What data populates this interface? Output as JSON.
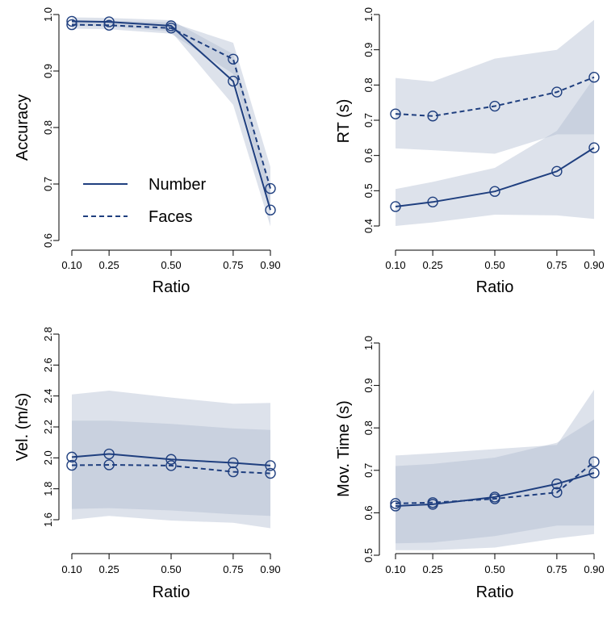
{
  "chart_data": [
    {
      "type": "line",
      "panel": "top-left",
      "xlabel": "Ratio",
      "ylabel": "Accuracy",
      "x": [
        0.1,
        0.25,
        0.5,
        0.75,
        0.9
      ],
      "x_ticks": [
        "0.10",
        "0.25",
        "0.50",
        "0.75",
        "0.90"
      ],
      "ylim": [
        0.6,
        1.0
      ],
      "y_ticks": [
        "0.6",
        "0.7",
        "0.8",
        "0.9",
        "1.0"
      ],
      "legend": {
        "placement": "left",
        "entries": [
          "Number",
          "Faces"
        ]
      },
      "series": [
        {
          "name": "Number",
          "style": "solid",
          "values": [
            0.988,
            0.987,
            0.98,
            0.882,
            0.654
          ],
          "band_lower": [
            0.98,
            0.979,
            0.97,
            0.84,
            0.625
          ],
          "band_upper": [
            0.995,
            0.994,
            0.99,
            0.93,
            0.69
          ]
        },
        {
          "name": "Faces",
          "style": "dashed",
          "values": [
            0.982,
            0.981,
            0.976,
            0.921,
            0.692
          ],
          "band_lower": [
            0.975,
            0.974,
            0.966,
            0.895,
            0.66
          ],
          "band_upper": [
            0.99,
            0.989,
            0.986,
            0.95,
            0.73
          ]
        }
      ]
    },
    {
      "type": "line",
      "panel": "top-right",
      "xlabel": "Ratio",
      "ylabel": "RT (s)",
      "x": [
        0.1,
        0.25,
        0.5,
        0.75,
        0.9
      ],
      "x_ticks": [
        "0.10",
        "0.25",
        "0.50",
        "0.75",
        "0.90"
      ],
      "ylim": [
        0.4,
        1.0
      ],
      "y_ticks": [
        "0.4",
        "0.5",
        "0.6",
        "0.7",
        "0.8",
        "0.9",
        "1.0"
      ],
      "series": [
        {
          "name": "Number",
          "style": "solid",
          "values": [
            0.455,
            0.468,
            0.498,
            0.555,
            0.622
          ],
          "band_lower": [
            0.4,
            0.41,
            0.432,
            0.43,
            0.42
          ],
          "band_upper": [
            0.505,
            0.525,
            0.565,
            0.67,
            0.82
          ]
        },
        {
          "name": "Faces",
          "style": "dashed",
          "values": [
            0.718,
            0.712,
            0.74,
            0.78,
            0.822
          ],
          "band_lower": [
            0.62,
            0.615,
            0.605,
            0.66,
            0.66
          ],
          "band_upper": [
            0.82,
            0.81,
            0.875,
            0.9,
            0.985
          ]
        }
      ]
    },
    {
      "type": "line",
      "panel": "bottom-left",
      "xlabel": "Ratio",
      "ylabel": "Vel. (m/s)",
      "x": [
        0.1,
        0.25,
        0.5,
        0.75,
        0.9
      ],
      "x_ticks": [
        "0.10",
        "0.25",
        "0.50",
        "0.75",
        "0.90"
      ],
      "ylim": [
        1.6,
        2.8
      ],
      "y_ticks": [
        "1.6",
        "1.8",
        "2.0",
        "2.2",
        "2.4",
        "2.6",
        "2.8"
      ],
      "series": [
        {
          "name": "Number",
          "style": "solid",
          "values": [
            2.005,
            2.025,
            1.99,
            1.968,
            1.95
          ],
          "band_lower": [
            1.6,
            1.625,
            1.595,
            1.58,
            1.545
          ],
          "band_upper": [
            2.41,
            2.435,
            2.39,
            2.35,
            2.355
          ]
        },
        {
          "name": "Faces",
          "style": "dashed",
          "values": [
            1.952,
            1.955,
            1.95,
            1.91,
            1.9
          ],
          "band_lower": [
            1.67,
            1.675,
            1.66,
            1.635,
            1.625
          ],
          "band_upper": [
            2.24,
            2.24,
            2.22,
            2.19,
            2.18
          ]
        }
      ]
    },
    {
      "type": "line",
      "panel": "bottom-right",
      "xlabel": "Ratio",
      "ylabel": "Mov. Time (s)",
      "x": [
        0.1,
        0.25,
        0.5,
        0.75,
        0.9
      ],
      "x_ticks": [
        "0.10",
        "0.25",
        "0.50",
        "0.75",
        "0.90"
      ],
      "ylim": [
        0.5,
        1.0
      ],
      "y_ticks": [
        "0.5",
        "0.6",
        "0.7",
        "0.8",
        "0.9",
        "1.0"
      ],
      "series": [
        {
          "name": "Number",
          "style": "solid",
          "values": [
            0.616,
            0.62,
            0.637,
            0.668,
            0.694
          ],
          "band_lower": [
            0.512,
            0.512,
            0.518,
            0.54,
            0.55
          ],
          "band_upper": [
            0.735,
            0.74,
            0.75,
            0.76,
            0.89
          ]
        },
        {
          "name": "Faces",
          "style": "dashed",
          "values": [
            0.622,
            0.624,
            0.633,
            0.648,
            0.72
          ],
          "band_lower": [
            0.528,
            0.53,
            0.545,
            0.57,
            0.57
          ],
          "band_upper": [
            0.71,
            0.715,
            0.73,
            0.765,
            0.82
          ]
        }
      ]
    }
  ],
  "colors": {
    "line": "#1f3f7f",
    "band_light": "#dfe4ee",
    "band_dark": "#aebbcf"
  }
}
